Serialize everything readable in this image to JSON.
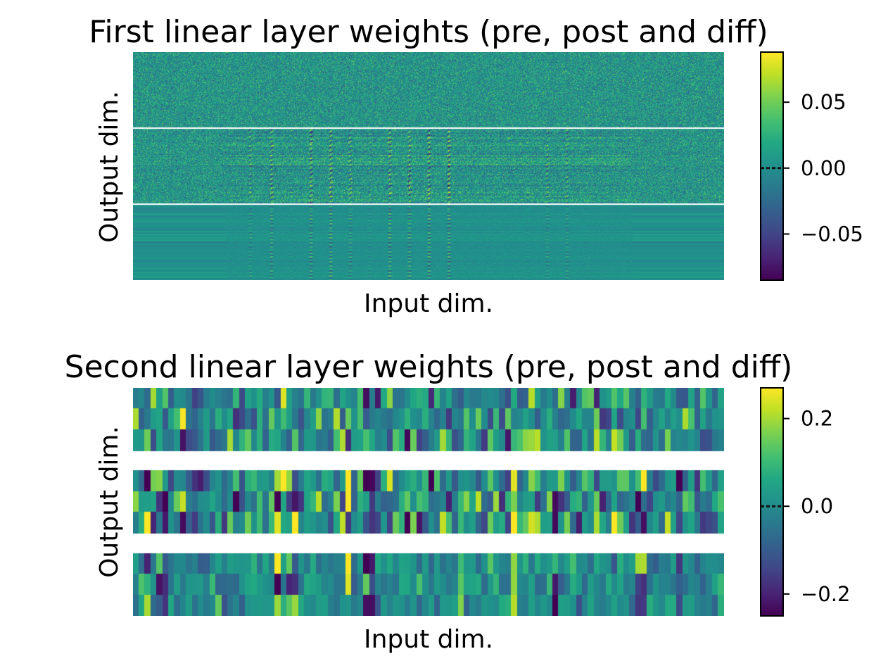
{
  "chart_data": [
    {
      "type": "heatmap",
      "title": "First linear layer weights (pre, post and diff)",
      "xlabel": "Input dim.",
      "ylabel": "Output dim.",
      "colormap": "viridis",
      "separator_color": "#ffffff",
      "panels": [
        "pre",
        "post",
        "diff"
      ],
      "panel_gap": "thin",
      "texture": "fine",
      "input_dim_cells": 420,
      "output_dim_cells": 60,
      "stripe_columns": [
        83,
        98,
        112,
        126,
        140,
        154,
        168,
        182,
        196,
        210,
        224,
        238,
        252,
        266,
        280,
        294,
        308,
        322
      ],
      "diff_active_range": [
        66,
        354
      ],
      "colorbar": {
        "vmin": -0.085,
        "vmax": 0.088,
        "ticks": [
          -0.05,
          0.0,
          0.05
        ],
        "tick_labels": [
          "−0.05",
          "0.00",
          "0.05"
        ],
        "marker": 0.0
      }
    },
    {
      "type": "heatmap",
      "title": "Second linear layer weights (pre, post and diff)",
      "xlabel": "Input dim.",
      "ylabel": "Output dim.",
      "colormap": "viridis",
      "separator_color": "#ffffff",
      "panels": [
        "pre",
        "post",
        "diff"
      ],
      "panel_gap": "wide",
      "texture": "coarse",
      "input_dim_cells": 100,
      "output_dim_cells": 3,
      "stripe_columns": [
        2,
        4,
        5,
        24,
        26,
        27,
        36,
        39,
        40,
        55,
        64,
        71,
        85,
        86,
        92
      ],
      "colorbar": {
        "vmin": -0.25,
        "vmax": 0.27,
        "ticks": [
          -0.2,
          0.0,
          0.2
        ],
        "tick_labels": [
          "−0.2",
          "0.0",
          "0.2"
        ],
        "marker": 0.0
      }
    }
  ]
}
